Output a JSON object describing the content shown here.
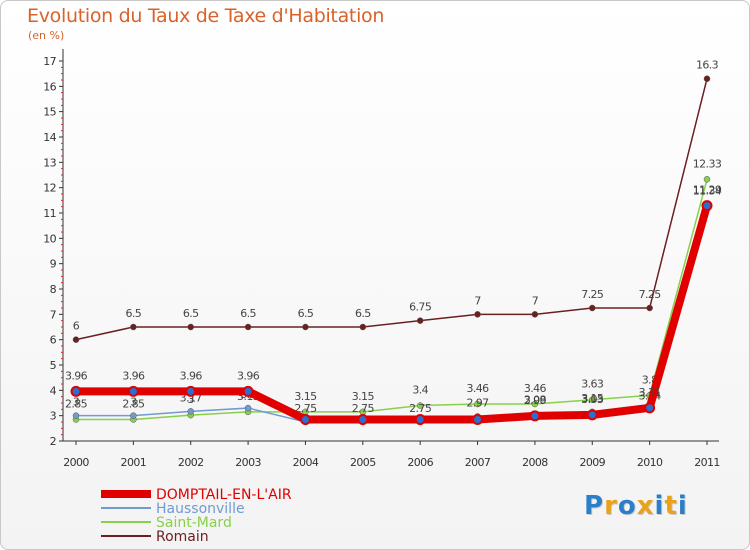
{
  "chart_data": {
    "type": "line",
    "title": "Evolution du Taux de Taxe d'Habitation",
    "subtitle": "(en %)",
    "x": [
      "2000",
      "2001",
      "2002",
      "2003",
      "2004",
      "2005",
      "2006",
      "2007",
      "2008",
      "2009",
      "2010",
      "2011"
    ],
    "y_ticks": [
      2,
      3,
      4,
      5,
      6,
      7,
      8,
      9,
      10,
      11,
      12,
      13,
      14,
      15,
      16,
      17
    ],
    "ylim": [
      2,
      17
    ],
    "grid": false,
    "legend_position": "bottom-left",
    "series": [
      {
        "name": "Romain",
        "color": "#6b2020",
        "values": [
          6,
          6.5,
          6.5,
          6.5,
          6.5,
          6.5,
          6.75,
          7,
          7,
          7.25,
          7.25,
          16.3
        ],
        "labels": [
          "6",
          "6.5",
          "6.5",
          "6.5",
          "6.5",
          "6.5",
          "6.75",
          "7",
          "7",
          "7.25",
          "7.25",
          "16.3"
        ]
      },
      {
        "name": "Saint-Mard",
        "color": "#88d04a",
        "values": [
          2.85,
          2.85,
          3.02,
          3.15,
          3.15,
          3.15,
          3.4,
          3.46,
          3.46,
          3.63,
          3.8,
          12.33
        ],
        "labels": [
          "2.85",
          "2.85",
          "3",
          "3.15",
          "3.15",
          "3.15",
          "3.4",
          "3.46",
          "3.46",
          "3.63",
          "3.8",
          "12.33"
        ]
      },
      {
        "name": "Haussonville",
        "color": "#6f9bd1",
        "values": [
          3,
          3,
          3.17,
          3.3,
          2.75,
          2.75,
          2.75,
          2.97,
          3.08,
          3.15,
          3.24,
          11.34
        ],
        "labels": [
          "3",
          "3",
          "3.17",
          "3.3",
          "2.75",
          "2.75",
          "2.75",
          "2.97",
          "3.08",
          "3.15",
          "3.24",
          "11.34"
        ]
      },
      {
        "name": "DOMPTAIL-EN-L'AIR",
        "color": "#e00000",
        "values": [
          3.96,
          3.96,
          3.96,
          3.96,
          2.85,
          2.85,
          2.85,
          2.85,
          2.99,
          3.03,
          3.31,
          11.29
        ],
        "labels": [
          "3.96",
          "3.96",
          "3.96",
          "3.96",
          "",
          "",
          "",
          "",
          "2.99",
          "3.03",
          "3.31",
          "11.29"
        ]
      }
    ],
    "legend_order": [
      "DOMPTAIL-EN-L'AIR",
      "Haussonville",
      "Saint-Mard",
      "Romain"
    ]
  },
  "logo": {
    "parts": [
      "P",
      "r",
      "o",
      "x",
      "i",
      "t",
      "i"
    ],
    "colors": [
      "#2b7fc9",
      "#e8a21c",
      "#2b7fc9",
      "#e8a21c",
      "#2b7fc9",
      "#e8a21c",
      "#2b7fc9"
    ]
  }
}
